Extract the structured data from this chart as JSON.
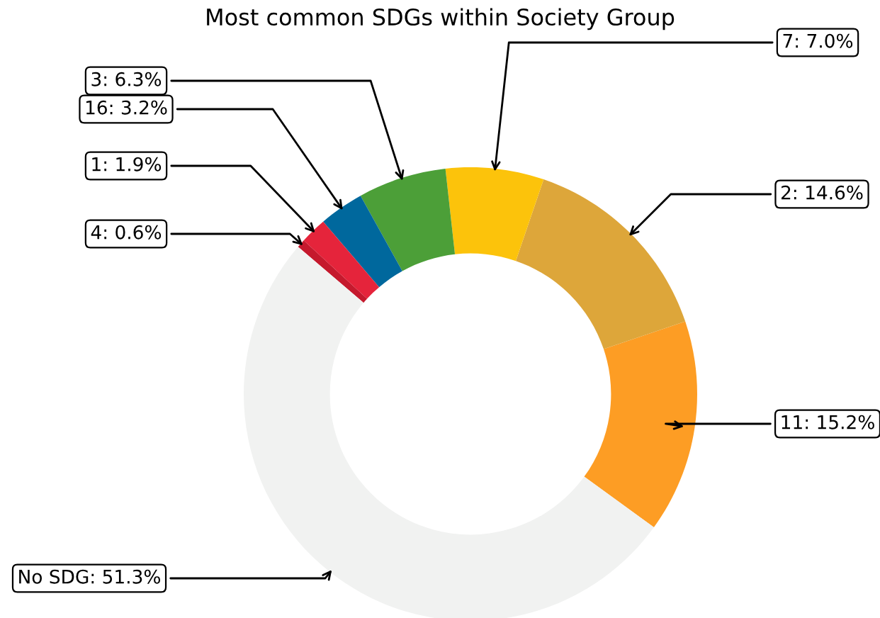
{
  "chart_data": {
    "type": "donut",
    "title": "Most common SDGs within Society Group",
    "categories": [
      "11: 15.2%",
      "2: 14.6%",
      "7: 7.0%",
      "3: 6.3%",
      "16: 3.2%",
      "1: 1.9%",
      "4: 0.6%",
      "No SDG: 51.3%"
    ],
    "values": [
      15.2,
      14.6,
      7.0,
      6.3,
      3.2,
      1.9,
      0.6,
      51.3
    ],
    "colors": [
      "#fd9d24",
      "#dda63a",
      "#fcc30b",
      "#4c9f38",
      "#00689d",
      "#e5243b",
      "#c5192d",
      "#f1f2f1"
    ]
  }
}
